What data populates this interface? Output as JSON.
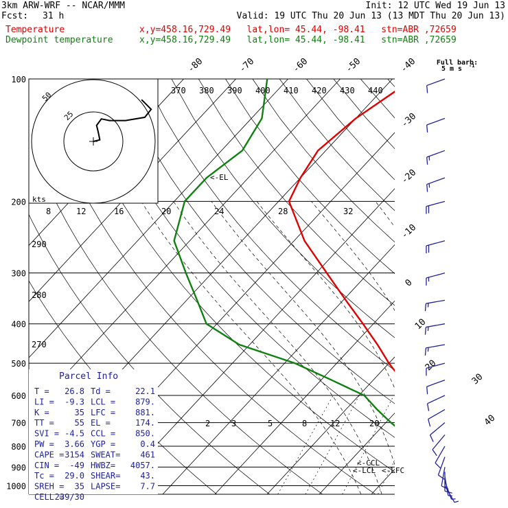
{
  "header": {
    "model": "3km ARW-WRF -- NCAR/MMM",
    "init": "Init: 12 UTC Wed 19 Jun 13",
    "fcst_label": "Fcst:",
    "fcst_value": "31 h",
    "valid": "Valid: 19 UTC Thu 20 Jun 13 (13 MDT Thu 20 Jun 13)",
    "temp_label": "Temperature",
    "temp_info": "x,y=458.16,729.49   lat,lon= 45.44, -98.41   stn=ABR ,72659",
    "dew_label": "Dewpoint temperature",
    "dew_info": "x,y=458.16,729.49   lat,lon= 45.44, -98.41   stn=ABR ,72659"
  },
  "colors": {
    "temperature": "#e00000",
    "dewpoint": "#108010",
    "wind": "#2020a0",
    "grid": "#000000"
  },
  "barb_legend": {
    "title": "Full barb:",
    "value": "5 m s",
    "superscript": "-1"
  },
  "chart_data": {
    "type": "skew-t",
    "pressure_levels": [
      100,
      200,
      300,
      400,
      500,
      600,
      700,
      800,
      900,
      1000
    ],
    "pressure_labels": [
      "100",
      "200",
      "300",
      "400",
      "500",
      "600",
      "700",
      "800",
      "900",
      "1000"
    ],
    "isotherm_labels_top": [
      "-80",
      "-70",
      "-60",
      "-50",
      "-40"
    ],
    "isotherm_labels_right": [
      "-30",
      "-20",
      "-10",
      "0",
      "10",
      "20",
      "30",
      "40"
    ],
    "isotherm_values_top": [
      -80,
      -70,
      -60,
      -50,
      -40
    ],
    "isotherm_values_right": [
      -30,
      -20,
      -10,
      0,
      10,
      20,
      30,
      40
    ],
    "theta_labels": [
      "370",
      "380",
      "390",
      "400",
      "410",
      "420",
      "430",
      "440"
    ],
    "theta_e_labels": [
      "290",
      "280",
      "270"
    ],
    "mixing_ratio_labels": [
      "2",
      "3",
      "5",
      "8",
      "12",
      "20"
    ],
    "hodograph_scale_labels": [
      "8",
      "12",
      "16",
      "20",
      "24",
      "28",
      "32"
    ],
    "temperature": {
      "name": "Temperature",
      "points": [
        [
          1000,
          31.5
        ],
        [
          975,
          29.0
        ],
        [
          950,
          26.5
        ],
        [
          925,
          25.5
        ],
        [
          900,
          24.5
        ],
        [
          875,
          23.0
        ],
        [
          850,
          21.5
        ],
        [
          800,
          18.0
        ],
        [
          750,
          14.5
        ],
        [
          700,
          10.0
        ],
        [
          650,
          5.5
        ],
        [
          600,
          1.0
        ],
        [
          550,
          -4.5
        ],
        [
          500,
          -10.0
        ],
        [
          450,
          -15.5
        ],
        [
          400,
          -22.0
        ],
        [
          350,
          -29.5
        ],
        [
          300,
          -38.0
        ],
        [
          250,
          -48.0
        ],
        [
          200,
          -58.0
        ],
        [
          175,
          -60.0
        ],
        [
          150,
          -61.5
        ],
        [
          125,
          -60.0
        ],
        [
          100,
          -56.0
        ]
      ]
    },
    "dewpoint": {
      "name": "Dewpoint temperature",
      "points": [
        [
          1000,
          24.0
        ],
        [
          975,
          23.0
        ],
        [
          950,
          22.0
        ],
        [
          925,
          21.5
        ],
        [
          900,
          19.0
        ],
        [
          875,
          16.5
        ],
        [
          850,
          15.0
        ],
        [
          800,
          9.5
        ],
        [
          750,
          6.0
        ],
        [
          700,
          1.0
        ],
        [
          650,
          -4.0
        ],
        [
          600,
          -9.0
        ],
        [
          550,
          -18.0
        ],
        [
          500,
          -28.0
        ],
        [
          450,
          -42.0
        ],
        [
          400,
          -52.0
        ],
        [
          350,
          -58.0
        ],
        [
          300,
          -65.0
        ],
        [
          250,
          -73.0
        ],
        [
          200,
          -78.0
        ],
        [
          175,
          -78.0
        ],
        [
          150,
          -76.0
        ],
        [
          125,
          -78.0
        ],
        [
          100,
          -84.0
        ]
      ]
    },
    "annotations": [
      {
        "label": "<-EL",
        "pressure": 174
      },
      {
        "label": "<-CCL",
        "pressure": 850
      },
      {
        "label": "<-LCL",
        "pressure": 879
      },
      {
        "label": "<-LFC",
        "pressure": 881
      }
    ],
    "hodograph": {
      "rings": [
        "25",
        "50"
      ],
      "units": "kts",
      "points": [
        [
          0,
          0
        ],
        [
          4,
          1
        ],
        [
          3,
          6
        ],
        [
          2,
          10
        ],
        [
          5,
          14
        ],
        [
          10,
          13
        ],
        [
          20,
          13
        ],
        [
          32,
          15
        ],
        [
          36,
          20
        ],
        [
          30,
          26
        ]
      ]
    },
    "winds": {
      "units": "m/s",
      "barbs": [
        [
          1000,
          150,
          3
        ],
        [
          975,
          160,
          5
        ],
        [
          950,
          170,
          7
        ],
        [
          925,
          180,
          9
        ],
        [
          900,
          190,
          10
        ],
        [
          850,
          200,
          10
        ],
        [
          800,
          210,
          9
        ],
        [
          750,
          220,
          8
        ],
        [
          700,
          230,
          8
        ],
        [
          650,
          240,
          9
        ],
        [
          600,
          245,
          10
        ],
        [
          550,
          250,
          11
        ],
        [
          500,
          255,
          12
        ],
        [
          450,
          260,
          13
        ],
        [
          400,
          260,
          14
        ],
        [
          350,
          260,
          15
        ],
        [
          300,
          255,
          17
        ],
        [
          250,
          255,
          18
        ],
        [
          200,
          255,
          18
        ],
        [
          175,
          250,
          16
        ],
        [
          150,
          250,
          14
        ],
        [
          125,
          250,
          12
        ],
        [
          100,
          250,
          10
        ]
      ]
    }
  },
  "parcel_info": {
    "title": "Parcel Info",
    "rows": [
      {
        "a": "T  =",
        "av": "26.8",
        "b": "Td =",
        "bv": "22.1"
      },
      {
        "a": "LI =",
        "av": "-9.3",
        "b": "LCL =",
        "bv": "879."
      },
      {
        "a": "K  =",
        "av": "35",
        "b": "LFC =",
        "bv": "881."
      },
      {
        "a": "TT =",
        "av": "55",
        "b": "EL  =",
        "bv": "174."
      },
      {
        "a": "SVI =",
        "av": "-4.5",
        "b": "CCL =",
        "bv": "850."
      },
      {
        "a": "PW =",
        "av": "3.66",
        "b": "YGP =",
        "bv": "0.4"
      },
      {
        "a": "CAPE =",
        "av": "3154",
        "b": "SWEAT=",
        "bv": "461"
      },
      {
        "a": "CIN =",
        "av": "-49",
        "b": "HWBZ=",
        "bv": "4057."
      },
      {
        "a": "Tc =",
        "av": "29.0",
        "b": "SHEAR=",
        "bv": "43."
      },
      {
        "a": "SREH =",
        "av": "35",
        "b": "LAPSE=",
        "bv": "7.7"
      },
      {
        "a": "CELL =",
        "av": "239/30",
        "b": "",
        "bv": ""
      }
    ]
  }
}
